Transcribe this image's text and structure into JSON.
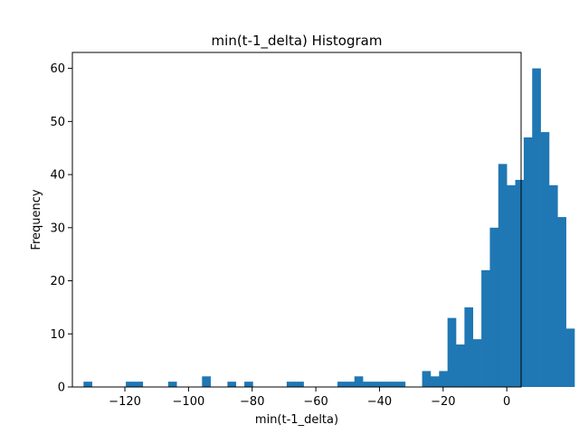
{
  "chart_data": {
    "type": "bar",
    "title": "min(t-1_delta) Histogram",
    "xlabel": "min(t-1_delta)",
    "ylabel": "Frequency",
    "xlim": [
      -136.5,
      4.5
    ],
    "ylim": [
      0,
      63
    ],
    "xticks": [
      -120,
      -100,
      -80,
      -60,
      -40,
      -20,
      0
    ],
    "xtick_labels": [
      "−120",
      "−100",
      "−80",
      "−60",
      "−40",
      "−20",
      "0"
    ],
    "yticks": [
      0,
      10,
      20,
      30,
      40,
      50,
      60
    ],
    "ytick_labels": [
      "0",
      "10",
      "20",
      "30",
      "40",
      "50",
      "60"
    ],
    "bar_color": "#1f77b4",
    "grid": false,
    "bin_start": -133,
    "bin_width": 2.66,
    "counts": [
      1,
      0,
      0,
      0,
      0,
      1,
      1,
      0,
      0,
      0,
      1,
      0,
      0,
      0,
      2,
      0,
      0,
      1,
      0,
      1,
      0,
      0,
      0,
      0,
      1,
      1,
      0,
      0,
      0,
      0,
      1,
      1,
      2,
      1,
      1,
      1,
      1,
      1,
      0,
      0,
      3,
      2,
      3,
      13,
      8,
      15,
      9,
      22,
      30,
      42,
      38,
      39,
      47,
      60,
      48,
      38,
      32,
      11
    ]
  }
}
